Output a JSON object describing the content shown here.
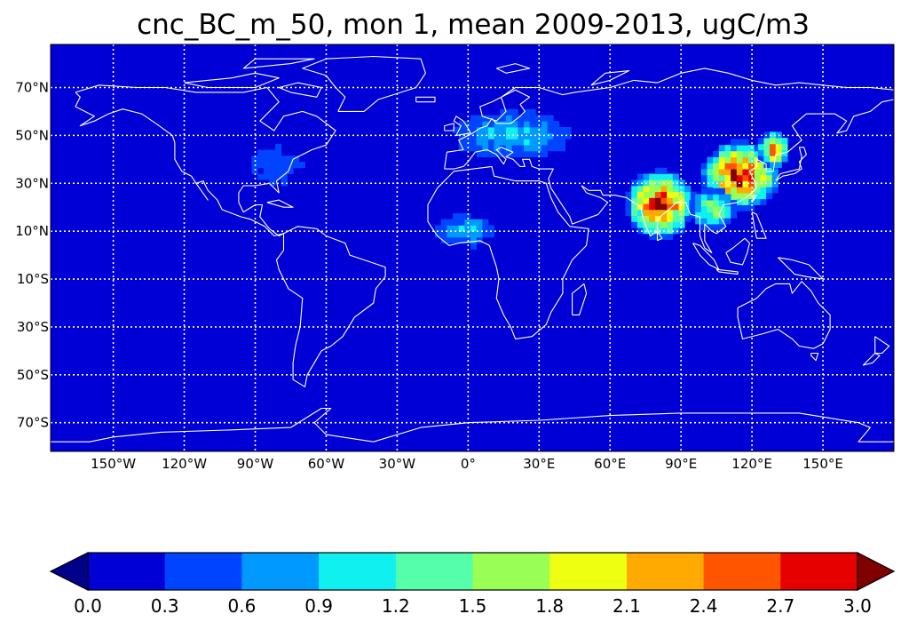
{
  "chart_data": {
    "type": "heatmap",
    "title": "cnc_BC_m_50, mon 1, mean 2009-2013, ugC/m3",
    "map": {
      "projection": "equirectangular",
      "lon_range": [
        -180,
        180
      ],
      "lat_range": [
        -90,
        90
      ],
      "background_color": "#0000d6",
      "coastline_color": "#ffffff",
      "grid": "on (white dotted)",
      "x_ticks": [
        {
          "value": -150,
          "label": "150°W"
        },
        {
          "value": -120,
          "label": "120°W"
        },
        {
          "value": -90,
          "label": "90°W"
        },
        {
          "value": -60,
          "label": "60°W"
        },
        {
          "value": -30,
          "label": "30°W"
        },
        {
          "value": 0,
          "label": "0°"
        },
        {
          "value": 30,
          "label": "30°E"
        },
        {
          "value": 60,
          "label": "60°E"
        },
        {
          "value": 90,
          "label": "90°E"
        },
        {
          "value": 120,
          "label": "120°E"
        },
        {
          "value": 150,
          "label": "150°E"
        }
      ],
      "y_ticks": [
        {
          "value": 70,
          "label": "70°N"
        },
        {
          "value": 50,
          "label": "50°N"
        },
        {
          "value": 30,
          "label": "30°N"
        },
        {
          "value": 10,
          "label": "10°N"
        },
        {
          "value": -10,
          "label": "10°S"
        },
        {
          "value": -30,
          "label": "30°S"
        },
        {
          "value": -50,
          "label": "50°S"
        },
        {
          "value": -70,
          "label": "70°S"
        }
      ]
    },
    "colorbar": {
      "levels": [
        0.0,
        0.3,
        0.6,
        0.9,
        1.2,
        1.5,
        1.8,
        2.1,
        2.4,
        2.7,
        3.0
      ],
      "tick_labels": [
        "0.0",
        "0.3",
        "0.6",
        "0.9",
        "1.2",
        "1.5",
        "1.8",
        "2.1",
        "2.4",
        "2.7",
        "3.0"
      ],
      "colors": [
        "#0000d6",
        "#0044ff",
        "#0099ff",
        "#11f0f0",
        "#55ffaa",
        "#99ff55",
        "#eeff11",
        "#ffaa00",
        "#ff5500",
        "#e60000"
      ],
      "under_color": "#000088",
      "over_color": "#800000",
      "extend": "both"
    },
    "hotspots": [
      {
        "region": "Indo-Gangetic plain (India)",
        "lon": [
          68,
          92
        ],
        "lat": [
          8,
          32
        ],
        "peak": 3.0
      },
      {
        "region": "Eastern China",
        "lon": [
          100,
          128
        ],
        "lat": [
          20,
          44
        ],
        "peak": 3.0
      },
      {
        "region": "Korea / NE China",
        "lon": [
          124,
          132
        ],
        "lat": [
          38,
          48
        ],
        "peak": 2.5
      },
      {
        "region": "Southeast Asia",
        "lon": [
          95,
          110
        ],
        "lat": [
          12,
          24
        ],
        "peak": 1.8
      },
      {
        "region": "Europe",
        "lon": [
          -10,
          45
        ],
        "lat": [
          40,
          58
        ],
        "peak": 1.0
      },
      {
        "region": "West Africa",
        "lon": [
          -15,
          10
        ],
        "lat": [
          4,
          14
        ],
        "peak": 1.0
      },
      {
        "region": "Eastern USA",
        "lon": [
          -95,
          -70
        ],
        "lat": [
          28,
          45
        ],
        "peak": 0.6
      }
    ]
  }
}
